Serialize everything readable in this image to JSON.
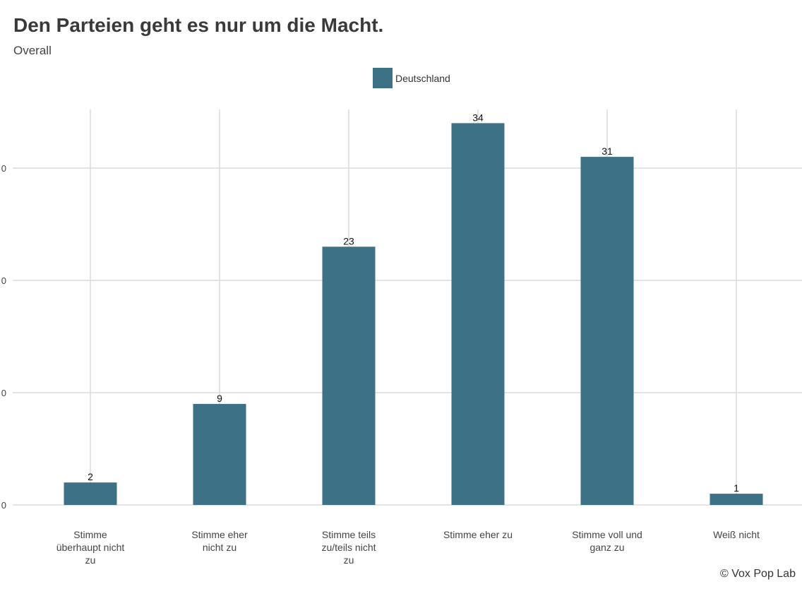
{
  "chart_data": {
    "type": "bar",
    "title": "Den Parteien geht es nur um die Macht.",
    "subtitle": "Overall",
    "categories": [
      [
        "Stimme",
        "überhaupt nicht",
        "zu"
      ],
      [
        "Stimme eher",
        "nicht zu"
      ],
      [
        "Stimme teils",
        "zu/teils nicht",
        "zu"
      ],
      [
        "Stimme eher zu"
      ],
      [
        "Stimme voll und",
        "ganz zu"
      ],
      [
        "Weiß nicht"
      ]
    ],
    "series": [
      {
        "name": "Deutschland",
        "values": [
          2,
          9,
          23,
          34,
          31,
          1
        ],
        "color": "#3d7185"
      }
    ],
    "data_labels": [
      "2",
      "9",
      "23",
      "34",
      "31",
      "1"
    ],
    "y_tick_labels": [
      "0",
      "0",
      "0",
      "0"
    ],
    "ylim": [
      0,
      35
    ],
    "grid": true,
    "legend_position": "top"
  },
  "credit": "© Vox Pop Lab"
}
